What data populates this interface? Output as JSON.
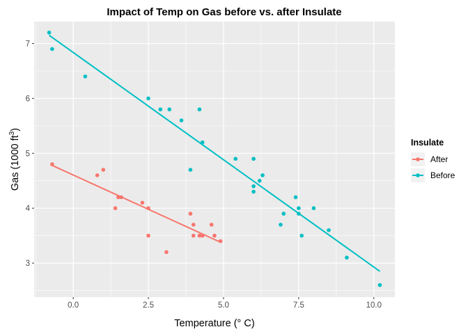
{
  "chart_data": {
    "type": "scatter",
    "title": "Impact of Temp on Gas before vs. after Insulate",
    "xlabel": "Temperature (° C)",
    "ylabel_main": "Gas (1000 ft",
    "ylabel_sup": "3",
    "ylabel_tail": ")",
    "xlim": [
      -1.3,
      10.7
    ],
    "ylim": [
      2.38,
      7.4
    ],
    "x_ticks": [
      0.0,
      2.5,
      5.0,
      7.5,
      10.0
    ],
    "x_tick_labels": [
      "0.0",
      "2.5",
      "5.0",
      "7.5",
      "10.0"
    ],
    "y_ticks": [
      3,
      4,
      5,
      6,
      7
    ],
    "y_tick_labels": [
      "3",
      "4",
      "5",
      "6",
      "7"
    ],
    "grid": true,
    "legend": {
      "title": "Insulate",
      "position": "right"
    },
    "series": [
      {
        "name": "After",
        "color": "#F8766D",
        "trend": {
          "x": [
            -0.7,
            4.9
          ],
          "y": [
            4.78,
            3.38
          ]
        },
        "points": [
          {
            "x": -0.7,
            "y": 4.8
          },
          {
            "x": 0.8,
            "y": 4.6
          },
          {
            "x": 1.0,
            "y": 4.7
          },
          {
            "x": 1.4,
            "y": 4.0
          },
          {
            "x": 1.5,
            "y": 4.2
          },
          {
            "x": 1.6,
            "y": 4.2
          },
          {
            "x": 2.3,
            "y": 4.1
          },
          {
            "x": 2.5,
            "y": 4.0
          },
          {
            "x": 2.5,
            "y": 3.5
          },
          {
            "x": 3.1,
            "y": 3.2
          },
          {
            "x": 3.9,
            "y": 3.9
          },
          {
            "x": 4.0,
            "y": 3.7
          },
          {
            "x": 4.0,
            "y": 3.5
          },
          {
            "x": 4.2,
            "y": 3.5
          },
          {
            "x": 4.3,
            "y": 3.5
          },
          {
            "x": 4.6,
            "y": 3.7
          },
          {
            "x": 4.7,
            "y": 3.5
          },
          {
            "x": 4.9,
            "y": 3.4
          }
        ]
      },
      {
        "name": "Before",
        "color": "#00BFC4",
        "trend": {
          "x": [
            -0.8,
            10.2
          ],
          "y": [
            7.15,
            2.85
          ]
        },
        "points": [
          {
            "x": -0.8,
            "y": 7.2
          },
          {
            "x": -0.7,
            "y": 6.9
          },
          {
            "x": 0.4,
            "y": 6.4
          },
          {
            "x": 2.5,
            "y": 6.0
          },
          {
            "x": 2.9,
            "y": 5.8
          },
          {
            "x": 3.2,
            "y": 5.8
          },
          {
            "x": 3.6,
            "y": 5.6
          },
          {
            "x": 3.9,
            "y": 4.7
          },
          {
            "x": 4.2,
            "y": 5.8
          },
          {
            "x": 4.3,
            "y": 5.2
          },
          {
            "x": 5.4,
            "y": 4.9
          },
          {
            "x": 6.0,
            "y": 4.9
          },
          {
            "x": 6.0,
            "y": 4.4
          },
          {
            "x": 6.0,
            "y": 4.3
          },
          {
            "x": 6.2,
            "y": 4.5
          },
          {
            "x": 6.3,
            "y": 4.6
          },
          {
            "x": 6.9,
            "y": 3.7
          },
          {
            "x": 7.0,
            "y": 3.9
          },
          {
            "x": 7.4,
            "y": 4.2
          },
          {
            "x": 7.5,
            "y": 4.0
          },
          {
            "x": 7.5,
            "y": 3.9
          },
          {
            "x": 7.6,
            "y": 3.5
          },
          {
            "x": 8.0,
            "y": 4.0
          },
          {
            "x": 8.5,
            "y": 3.6
          },
          {
            "x": 9.1,
            "y": 3.1
          },
          {
            "x": 10.2,
            "y": 2.6
          }
        ]
      }
    ]
  }
}
